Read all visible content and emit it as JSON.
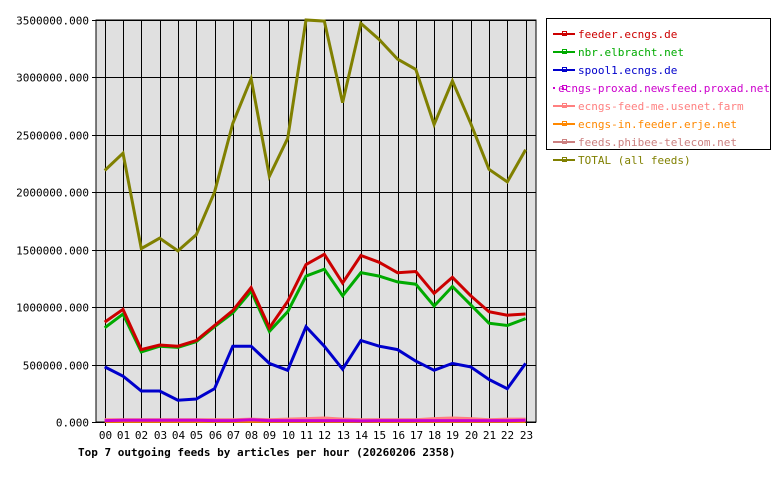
{
  "chart_data": {
    "type": "line",
    "title": "Top 7 outgoing feeds by articles per hour (20260206 2358)",
    "xlabel": "",
    "ylabel": "",
    "ylim": [
      0,
      3500000
    ],
    "grid": true,
    "legend_position": "right",
    "x": [
      "00",
      "01",
      "02",
      "03",
      "04",
      "05",
      "06",
      "07",
      "08",
      "09",
      "10",
      "11",
      "12",
      "13",
      "14",
      "15",
      "16",
      "17",
      "18",
      "19",
      "20",
      "21",
      "22",
      "23"
    ],
    "y_ticks": [
      "0.000",
      "500000.000",
      "1000000.000",
      "1500000.000",
      "2000000.000",
      "2500000.000",
      "3000000.000",
      "3500000.000"
    ],
    "series": [
      {
        "name": "feeder.ecngs.de",
        "color": "#cc0000",
        "values": [
          870000,
          980000,
          630000,
          670000,
          660000,
          710000,
          840000,
          970000,
          1170000,
          820000,
          1050000,
          1370000,
          1460000,
          1210000,
          1450000,
          1390000,
          1300000,
          1310000,
          1120000,
          1260000,
          1100000,
          960000,
          930000,
          940000
        ]
      },
      {
        "name": "nbr.elbracht.net",
        "color": "#00aa00",
        "values": [
          820000,
          940000,
          610000,
          660000,
          650000,
          700000,
          830000,
          950000,
          1140000,
          790000,
          960000,
          1270000,
          1330000,
          1100000,
          1300000,
          1270000,
          1220000,
          1200000,
          1010000,
          1180000,
          1020000,
          860000,
          840000,
          900000
        ]
      },
      {
        "name": "spool1.ecngs.de",
        "color": "#0000cc",
        "values": [
          480000,
          400000,
          270000,
          270000,
          190000,
          200000,
          290000,
          660000,
          660000,
          510000,
          450000,
          830000,
          660000,
          460000,
          710000,
          660000,
          630000,
          530000,
          450000,
          510000,
          480000,
          370000,
          290000,
          510000
        ]
      },
      {
        "name": "ecngs-proxad.newsfeed.proxad.net",
        "color": "#cc00cc",
        "values": [
          12000,
          15000,
          15000,
          15000,
          15000,
          15000,
          12000,
          12000,
          20000,
          12000,
          12000,
          12000,
          12000,
          12000,
          10000,
          12000,
          12000,
          12000,
          12000,
          12000,
          12000,
          12000,
          12000,
          15000
        ]
      },
      {
        "name": "ecngs-feed-me.usenet.farm",
        "color": "#ff8080",
        "values": [
          20000,
          20000,
          20000,
          20000,
          20000,
          20000,
          20000,
          20000,
          25000,
          20000,
          25000,
          30000,
          35000,
          25000,
          20000,
          20000,
          20000,
          20000,
          30000,
          35000,
          30000,
          20000,
          25000,
          25000
        ]
      },
      {
        "name": "ecngs-in.feeder.erje.net",
        "color": "#ff8800",
        "values": [
          5000,
          5000,
          5000,
          5000,
          5000,
          5000,
          5000,
          5000,
          5000,
          5000,
          5000,
          5000,
          5000,
          5000,
          5000,
          5000,
          5000,
          5000,
          5000,
          5000,
          5000,
          5000,
          5000,
          5000
        ]
      },
      {
        "name": "feeds.phibee-telecom.net",
        "color": "#cc8080",
        "values": [
          18000,
          18000,
          18000,
          18000,
          18000,
          18000,
          18000,
          18000,
          18000,
          18000,
          18000,
          18000,
          18000,
          18000,
          18000,
          18000,
          18000,
          18000,
          18000,
          18000,
          18000,
          18000,
          18000,
          18000
        ]
      },
      {
        "name": "TOTAL (all feeds)",
        "color": "#808000",
        "values": [
          2190000,
          2340000,
          1510000,
          1600000,
          1490000,
          1630000,
          2000000,
          2600000,
          2990000,
          2140000,
          2470000,
          3500000,
          3490000,
          2780000,
          3470000,
          3330000,
          3160000,
          3070000,
          2590000,
          2970000,
          2600000,
          2200000,
          2090000,
          2370000
        ]
      }
    ]
  },
  "legend": {
    "items": [
      {
        "label": "feeder.ecngs.de",
        "color": "#cc0000"
      },
      {
        "label": "nbr.elbracht.net",
        "color": "#00aa00"
      },
      {
        "label": "spool1.ecngs.de",
        "color": "#0000cc"
      },
      {
        "label": "ecngs-proxad.newsfeed.proxad.net",
        "color": "#cc00cc"
      },
      {
        "label": "ecngs-feed-me.usenet.farm",
        "color": "#ff8080"
      },
      {
        "label": "ecngs-in.feeder.erje.net",
        "color": "#ff8800"
      },
      {
        "label": "feeds.phibee-telecom.net",
        "color": "#cc8080"
      },
      {
        "label": "TOTAL (all feeds)",
        "color": "#808000"
      }
    ]
  },
  "colors": {
    "plot_background": "#e0e0e0",
    "grid": "#000000",
    "axis": "#000000"
  }
}
